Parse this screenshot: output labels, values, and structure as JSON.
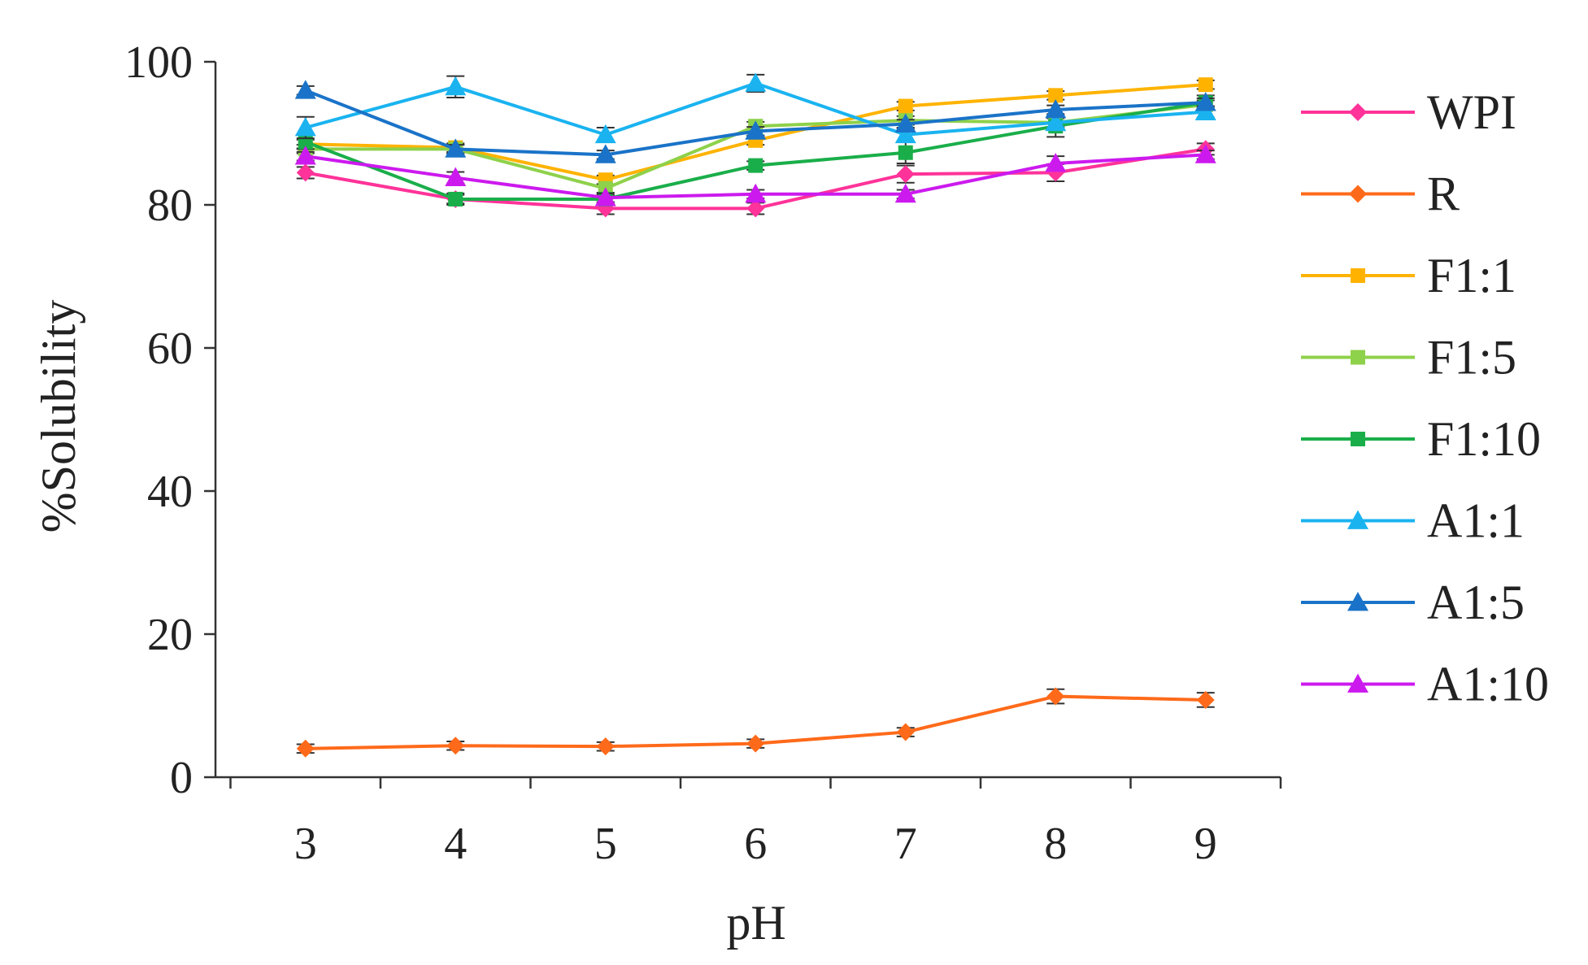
{
  "chart_data": {
    "type": "line",
    "xlabel": "pH",
    "ylabel": "%Solubility",
    "x": [
      3,
      4,
      5,
      6,
      7,
      8,
      9
    ],
    "xlim": [
      2.4,
      9.5
    ],
    "ylim": [
      0,
      100
    ],
    "yticks": [
      0,
      20,
      40,
      60,
      80,
      100
    ],
    "grid": false,
    "legend_position": "right",
    "series": [
      {
        "name": "WPI",
        "color": "#ff3399",
        "marker": "diamond",
        "values": [
          84.5,
          80.8,
          79.5,
          79.5,
          84.3,
          84.5,
          87.8
        ],
        "errors": [
          0.8,
          0.8,
          0.8,
          0.8,
          1.2,
          1.2,
          0.8
        ]
      },
      {
        "name": "R",
        "color": "#ff6a1a",
        "marker": "diamond",
        "values": [
          4.0,
          4.4,
          4.3,
          4.7,
          6.3,
          11.3,
          10.8
        ],
        "errors": [
          0.6,
          0.6,
          0.6,
          0.6,
          0.6,
          1.0,
          1.0
        ]
      },
      {
        "name": "F1:1",
        "color": "#ffb300",
        "marker": "square",
        "values": [
          88.5,
          88.0,
          83.5,
          89.0,
          93.8,
          95.3,
          96.8
        ],
        "errors": [
          0.6,
          0.6,
          0.6,
          0.6,
          0.6,
          0.6,
          0.6
        ]
      },
      {
        "name": "F1:5",
        "color": "#8ed14a",
        "marker": "square",
        "values": [
          87.8,
          87.8,
          82.3,
          91.0,
          91.8,
          91.5,
          94.0
        ],
        "errors": [
          0.6,
          0.6,
          0.6,
          0.6,
          0.6,
          0.6,
          0.6
        ]
      },
      {
        "name": "F1:10",
        "color": "#1aae4a",
        "marker": "square",
        "values": [
          88.8,
          80.8,
          80.8,
          85.5,
          87.3,
          91.0,
          94.3
        ],
        "errors": [
          1.0,
          0.6,
          0.6,
          0.6,
          1.5,
          1.5,
          1.0
        ]
      },
      {
        "name": "A1:1",
        "color": "#1ab3f0",
        "marker": "triangle",
        "values": [
          90.8,
          96.5,
          89.8,
          97.0,
          89.8,
          91.5,
          93.0
        ],
        "errors": [
          1.5,
          1.5,
          1.0,
          1.2,
          1.0,
          0.8,
          0.8
        ]
      },
      {
        "name": "A1:5",
        "color": "#1a73c8",
        "marker": "triangle",
        "values": [
          96.0,
          87.8,
          87.0,
          90.3,
          91.3,
          93.3,
          94.3
        ],
        "errors": [
          0.6,
          0.6,
          0.6,
          0.6,
          0.6,
          0.6,
          0.6
        ]
      },
      {
        "name": "A1:10",
        "color": "#cc1aee",
        "marker": "triangle",
        "values": [
          86.8,
          83.8,
          81.0,
          81.5,
          81.5,
          85.8,
          87.0
        ],
        "errors": [
          0.6,
          0.8,
          0.6,
          0.6,
          0.6,
          1.0,
          0.6
        ]
      }
    ]
  }
}
